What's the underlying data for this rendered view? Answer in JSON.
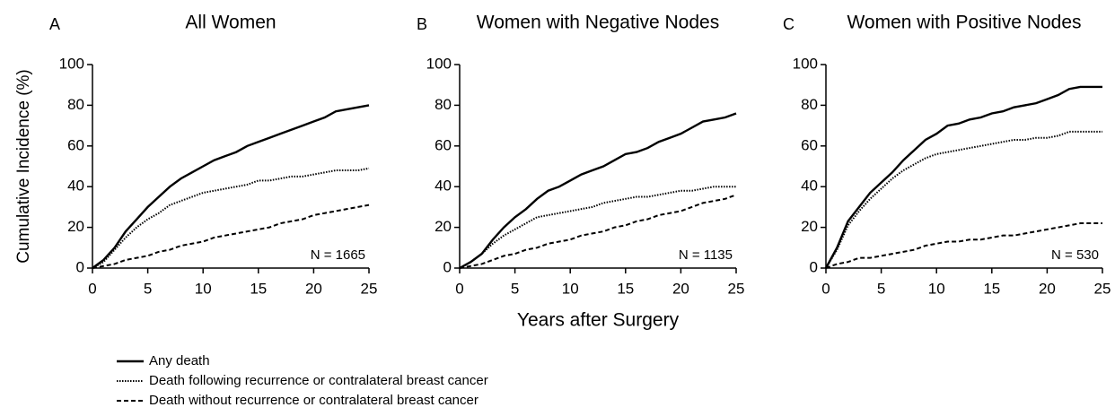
{
  "chart_data": [
    {
      "type": "line",
      "panel": "A",
      "title": "All Women",
      "annotation": "N = 1665",
      "ylabel": "Cumulative Incidence (%)",
      "x": [
        0,
        1,
        2,
        3,
        4,
        5,
        6,
        7,
        8,
        9,
        10,
        11,
        12,
        13,
        14,
        15,
        16,
        17,
        18,
        19,
        20,
        21,
        22,
        23,
        24,
        25
      ],
      "xlim": [
        0,
        25
      ],
      "xticks": [
        0,
        5,
        10,
        15,
        20,
        25
      ],
      "ylim": [
        0,
        100
      ],
      "yticks": [
        0,
        20,
        40,
        60,
        80,
        100
      ],
      "series": [
        {
          "name": "Any death",
          "color": "#000000",
          "style": "solid",
          "values": [
            0,
            4,
            10,
            18,
            24,
            30,
            35,
            40,
            44,
            47,
            50,
            53,
            55,
            57,
            60,
            62,
            64,
            66,
            68,
            70,
            72,
            74,
            77,
            78,
            79,
            80
          ]
        },
        {
          "name": "Death following recurrence or contralateral breast cancer",
          "color": "#000000",
          "style": "dotted",
          "values": [
            0,
            3,
            9,
            15,
            20,
            24,
            27,
            31,
            33,
            35,
            37,
            38,
            39,
            40,
            41,
            43,
            43,
            44,
            45,
            45,
            46,
            47,
            48,
            48,
            48,
            49
          ]
        },
        {
          "name": "Death without recurrence or contralateral breast cancer",
          "color": "#000000",
          "style": "dashed",
          "values": [
            0,
            1,
            2,
            4,
            5,
            6,
            8,
            9,
            11,
            12,
            13,
            15,
            16,
            17,
            18,
            19,
            20,
            22,
            23,
            24,
            26,
            27,
            28,
            29,
            30,
            31
          ]
        }
      ]
    },
    {
      "type": "line",
      "panel": "B",
      "title": "Women with Negative Nodes",
      "annotation": "N = 1135",
      "xlabel": "Years after Surgery",
      "x": [
        0,
        1,
        2,
        3,
        4,
        5,
        6,
        7,
        8,
        9,
        10,
        11,
        12,
        13,
        14,
        15,
        16,
        17,
        18,
        19,
        20,
        21,
        22,
        23,
        24,
        25
      ],
      "xlim": [
        0,
        25
      ],
      "xticks": [
        0,
        5,
        10,
        15,
        20,
        25
      ],
      "ylim": [
        0,
        100
      ],
      "yticks": [
        0,
        20,
        40,
        60,
        80,
        100
      ],
      "series": [
        {
          "color": "#000000",
          "style": "solid",
          "values": [
            0,
            3,
            7,
            14,
            20,
            25,
            29,
            34,
            38,
            40,
            43,
            46,
            48,
            50,
            53,
            56,
            57,
            59,
            62,
            64,
            66,
            69,
            72,
            73,
            74,
            76
          ]
        },
        {
          "color": "#000000",
          "style": "dotted",
          "values": [
            0,
            3,
            7,
            12,
            16,
            19,
            22,
            25,
            26,
            27,
            28,
            29,
            30,
            32,
            33,
            34,
            35,
            35,
            36,
            37,
            38,
            38,
            39,
            40,
            40,
            40
          ]
        },
        {
          "color": "#000000",
          "style": "dashed",
          "values": [
            0,
            1,
            2,
            4,
            6,
            7,
            9,
            10,
            12,
            13,
            14,
            16,
            17,
            18,
            20,
            21,
            23,
            24,
            26,
            27,
            28,
            30,
            32,
            33,
            34,
            36
          ]
        }
      ]
    },
    {
      "type": "line",
      "panel": "C",
      "title": "Women with Positive Nodes",
      "annotation": "N = 530",
      "x": [
        0,
        1,
        2,
        3,
        4,
        5,
        6,
        7,
        8,
        9,
        10,
        11,
        12,
        13,
        14,
        15,
        16,
        17,
        18,
        19,
        20,
        21,
        22,
        23,
        24,
        25
      ],
      "xlim": [
        0,
        25
      ],
      "xticks": [
        0,
        5,
        10,
        15,
        20,
        25
      ],
      "ylim": [
        0,
        100
      ],
      "yticks": [
        0,
        20,
        40,
        60,
        80,
        100
      ],
      "series": [
        {
          "color": "#000000",
          "style": "solid",
          "values": [
            0,
            10,
            23,
            30,
            37,
            42,
            47,
            53,
            58,
            63,
            66,
            70,
            71,
            73,
            74,
            76,
            77,
            79,
            80,
            81,
            83,
            85,
            88,
            89,
            89,
            89
          ]
        },
        {
          "color": "#000000",
          "style": "dotted",
          "values": [
            0,
            9,
            21,
            28,
            34,
            39,
            44,
            48,
            51,
            54,
            56,
            57,
            58,
            59,
            60,
            61,
            62,
            63,
            63,
            64,
            64,
            65,
            67,
            67,
            67,
            67
          ]
        },
        {
          "color": "#000000",
          "style": "dashed",
          "values": [
            0,
            2,
            3,
            5,
            5,
            6,
            7,
            8,
            9,
            11,
            12,
            13,
            13,
            14,
            14,
            15,
            16,
            16,
            17,
            18,
            19,
            20,
            21,
            22,
            22,
            22
          ]
        }
      ]
    }
  ]
}
